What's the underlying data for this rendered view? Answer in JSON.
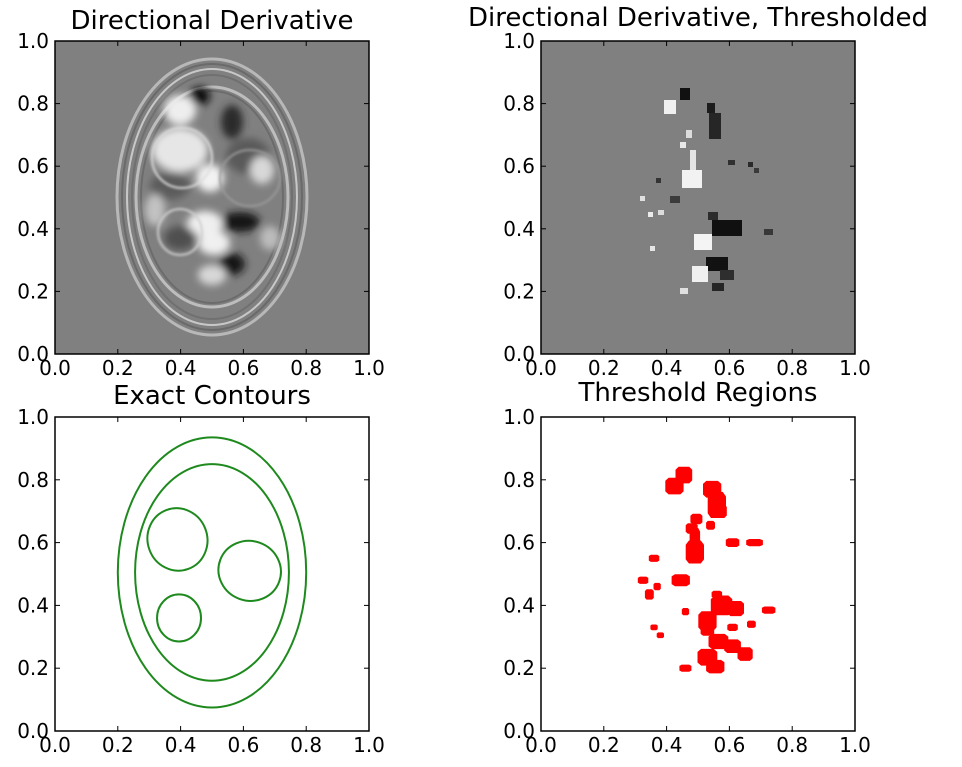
{
  "chart_data": [
    {
      "type": "heatmap",
      "title": "Directional Derivative",
      "xlim": [
        0,
        1
      ],
      "ylim": [
        0,
        1
      ],
      "xticks": [
        "0.0",
        "0.2",
        "0.4",
        "0.6",
        "0.8",
        "1.0"
      ],
      "yticks": [
        "0.0",
        "0.2",
        "0.4",
        "0.6",
        "0.8",
        "1.0"
      ],
      "colormap": "gray",
      "background_color": "#808080"
    },
    {
      "type": "heatmap",
      "title": "Directional Derivative, Thresholded",
      "xlim": [
        0,
        1
      ],
      "ylim": [
        0,
        1
      ],
      "xticks": [
        "0.0",
        "0.2",
        "0.4",
        "0.6",
        "0.8",
        "1.0"
      ],
      "yticks": [
        "0.0",
        "0.2",
        "0.4",
        "0.6",
        "0.8",
        "1.0"
      ],
      "colormap": "gray",
      "background_color": "#808080"
    },
    {
      "type": "line",
      "title": "Exact Contours",
      "xlim": [
        0,
        1
      ],
      "ylim": [
        0,
        1
      ],
      "xticks": [
        "0.0",
        "0.2",
        "0.4",
        "0.6",
        "0.8",
        "1.0"
      ],
      "yticks": [
        "0.0",
        "0.2",
        "0.4",
        "0.6",
        "0.8",
        "1.0"
      ],
      "line_color": "#1e8a1e",
      "ellipses": [
        {
          "cx": 0.5,
          "cy": 0.505,
          "rx": 0.3,
          "ry": 0.43,
          "angle": 0
        },
        {
          "cx": 0.5,
          "cy": 0.505,
          "rx": 0.245,
          "ry": 0.345,
          "angle": 0
        },
        {
          "cx": 0.39,
          "cy": 0.61,
          "rx": 0.095,
          "ry": 0.1,
          "angle": -20
        },
        {
          "cx": 0.62,
          "cy": 0.51,
          "rx": 0.1,
          "ry": 0.095,
          "angle": 20
        },
        {
          "cx": 0.395,
          "cy": 0.36,
          "rx": 0.07,
          "ry": 0.075,
          "angle": 0
        }
      ]
    },
    {
      "type": "scatter",
      "title": "Threshold Regions",
      "xlim": [
        0,
        1
      ],
      "ylim": [
        0,
        1
      ],
      "xticks": [
        "0.0",
        "0.2",
        "0.4",
        "0.6",
        "0.8",
        "1.0"
      ],
      "yticks": [
        "0.0",
        "0.2",
        "0.4",
        "0.6",
        "0.8",
        "1.0"
      ],
      "fill_color": "#ff0000",
      "regions": [
        {
          "x": 0.455,
          "y": 0.815,
          "w": 0.05,
          "h": 0.05
        },
        {
          "x": 0.425,
          "y": 0.78,
          "w": 0.055,
          "h": 0.05
        },
        {
          "x": 0.545,
          "y": 0.77,
          "w": 0.055,
          "h": 0.05
        },
        {
          "x": 0.56,
          "y": 0.72,
          "w": 0.055,
          "h": 0.08
        },
        {
          "x": 0.57,
          "y": 0.7,
          "w": 0.04,
          "h": 0.04
        },
        {
          "x": 0.495,
          "y": 0.675,
          "w": 0.035,
          "h": 0.03
        },
        {
          "x": 0.48,
          "y": 0.645,
          "w": 0.035,
          "h": 0.03
        },
        {
          "x": 0.54,
          "y": 0.655,
          "w": 0.025,
          "h": 0.025
        },
        {
          "x": 0.49,
          "y": 0.615,
          "w": 0.03,
          "h": 0.06
        },
        {
          "x": 0.49,
          "y": 0.57,
          "w": 0.055,
          "h": 0.07
        },
        {
          "x": 0.61,
          "y": 0.6,
          "w": 0.04,
          "h": 0.025
        },
        {
          "x": 0.68,
          "y": 0.6,
          "w": 0.05,
          "h": 0.02
        },
        {
          "x": 0.36,
          "y": 0.55,
          "w": 0.03,
          "h": 0.02
        },
        {
          "x": 0.445,
          "y": 0.48,
          "w": 0.055,
          "h": 0.035
        },
        {
          "x": 0.325,
          "y": 0.48,
          "w": 0.03,
          "h": 0.02
        },
        {
          "x": 0.37,
          "y": 0.46,
          "w": 0.02,
          "h": 0.02
        },
        {
          "x": 0.345,
          "y": 0.435,
          "w": 0.025,
          "h": 0.03
        },
        {
          "x": 0.56,
          "y": 0.435,
          "w": 0.03,
          "h": 0.02
        },
        {
          "x": 0.575,
          "y": 0.4,
          "w": 0.065,
          "h": 0.06
        },
        {
          "x": 0.62,
          "y": 0.39,
          "w": 0.05,
          "h": 0.045
        },
        {
          "x": 0.725,
          "y": 0.385,
          "w": 0.04,
          "h": 0.02
        },
        {
          "x": 0.46,
          "y": 0.38,
          "w": 0.02,
          "h": 0.02
        },
        {
          "x": 0.53,
          "y": 0.35,
          "w": 0.055,
          "h": 0.06
        },
        {
          "x": 0.53,
          "y": 0.32,
          "w": 0.04,
          "h": 0.03
        },
        {
          "x": 0.61,
          "y": 0.33,
          "w": 0.03,
          "h": 0.02
        },
        {
          "x": 0.67,
          "y": 0.34,
          "w": 0.025,
          "h": 0.02
        },
        {
          "x": 0.36,
          "y": 0.33,
          "w": 0.02,
          "h": 0.015
        },
        {
          "x": 0.38,
          "y": 0.305,
          "w": 0.02,
          "h": 0.015
        },
        {
          "x": 0.565,
          "y": 0.285,
          "w": 0.06,
          "h": 0.045
        },
        {
          "x": 0.61,
          "y": 0.27,
          "w": 0.05,
          "h": 0.04
        },
        {
          "x": 0.65,
          "y": 0.245,
          "w": 0.045,
          "h": 0.04
        },
        {
          "x": 0.53,
          "y": 0.235,
          "w": 0.06,
          "h": 0.05
        },
        {
          "x": 0.555,
          "y": 0.205,
          "w": 0.055,
          "h": 0.04
        },
        {
          "x": 0.46,
          "y": 0.2,
          "w": 0.035,
          "h": 0.02
        }
      ]
    }
  ]
}
